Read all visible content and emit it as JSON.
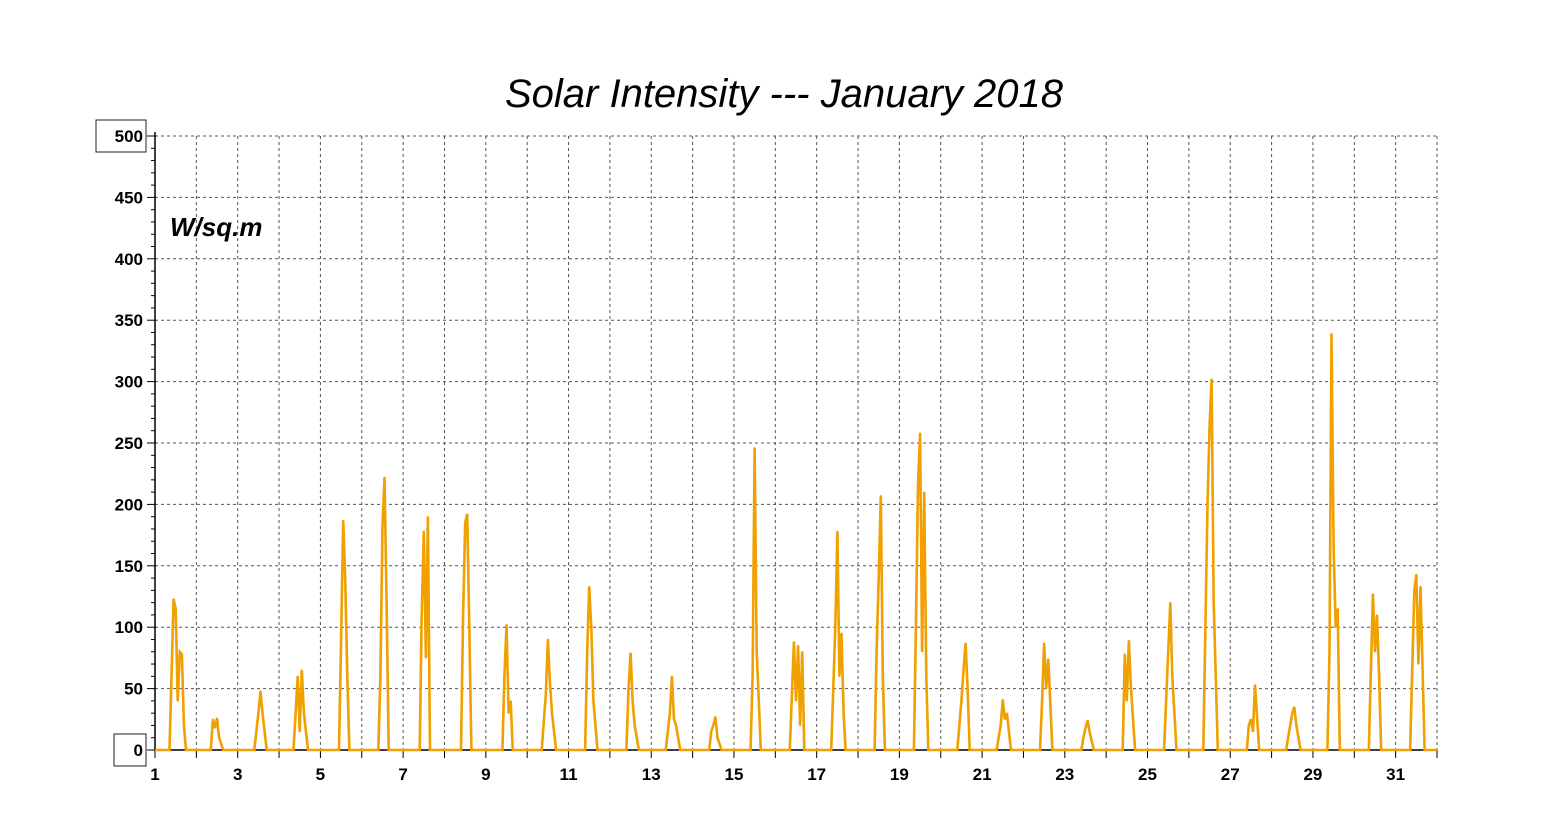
{
  "chart_data": {
    "type": "line",
    "title": "Solar Intensity --- January 2018",
    "ylabel": "W/sq.m",
    "xlabel": "",
    "x_tick_labels": [
      "1",
      "3",
      "5",
      "7",
      "9",
      "11",
      "13",
      "15",
      "17",
      "19",
      "21",
      "23",
      "25",
      "27",
      "29",
      "31"
    ],
    "y_tick_labels": [
      "0",
      "50",
      "100",
      "150",
      "200",
      "250",
      "300",
      "350",
      "400",
      "450",
      "500"
    ],
    "y_boxed_labels": [
      "0",
      "500"
    ],
    "xlim": [
      1,
      32
    ],
    "ylim": [
      0,
      500
    ],
    "grid": true,
    "legend": "none",
    "series": [
      {
        "color": "#f0a000",
        "daily_peaks": [
          {
            "day": 1,
            "x": [
              1.35,
              1.45,
              1.5,
              1.55,
              1.6,
              1.65,
              1.7,
              1.75
            ],
            "y": [
              0,
              123,
              115,
              40,
              80,
              78,
              20,
              0
            ]
          },
          {
            "day": 2,
            "x": [
              2.35,
              2.4,
              2.45,
              2.5,
              2.55,
              2.6,
              2.65
            ],
            "y": [
              0,
              25,
              18,
              26,
              10,
              5,
              0
            ]
          },
          {
            "day": 3,
            "x": [
              3.4,
              3.5,
              3.55,
              3.6,
              3.7
            ],
            "y": [
              0,
              30,
              48,
              30,
              0
            ]
          },
          {
            "day": 4,
            "x": [
              4.35,
              4.45,
              4.5,
              4.55,
              4.6,
              4.7
            ],
            "y": [
              0,
              60,
              15,
              65,
              30,
              0
            ]
          },
          {
            "day": 5,
            "x": [
              5.45,
              5.5,
              5.55,
              5.6,
              5.65,
              5.7
            ],
            "y": [
              0,
              90,
              187,
              140,
              60,
              0
            ]
          },
          {
            "day": 6,
            "x": [
              6.4,
              6.45,
              6.5,
              6.55,
              6.6,
              6.65
            ],
            "y": [
              0,
              60,
              182,
              222,
              120,
              0
            ]
          },
          {
            "day": 7,
            "x": [
              7.4,
              7.45,
              7.5,
              7.55,
              7.6,
              7.65
            ],
            "y": [
              0,
              110,
              178,
              75,
              190,
              0
            ]
          },
          {
            "day": 8,
            "x": [
              8.4,
              8.45,
              8.5,
              8.55,
              8.6,
              8.65
            ],
            "y": [
              0,
              110,
              185,
              192,
              100,
              0
            ]
          },
          {
            "day": 9,
            "x": [
              9.4,
              9.45,
              9.5,
              9.55,
              9.6,
              9.65
            ],
            "y": [
              0,
              60,
              102,
              30,
              40,
              0
            ]
          },
          {
            "day": 10,
            "x": [
              10.35,
              10.45,
              10.5,
              10.55,
              10.6,
              10.7
            ],
            "y": [
              0,
              45,
              90,
              55,
              30,
              0
            ]
          },
          {
            "day": 11,
            "x": [
              11.4,
              11.45,
              11.5,
              11.55,
              11.6,
              11.7
            ],
            "y": [
              0,
              80,
              133,
              100,
              40,
              0
            ]
          },
          {
            "day": 12,
            "x": [
              12.4,
              12.45,
              12.5,
              12.55,
              12.6,
              12.7
            ],
            "y": [
              0,
              50,
              79,
              40,
              20,
              0
            ]
          },
          {
            "day": 13,
            "x": [
              13.35,
              13.45,
              13.5,
              13.55,
              13.6,
              13.7
            ],
            "y": [
              0,
              30,
              60,
              25,
              20,
              0
            ]
          },
          {
            "day": 14,
            "x": [
              14.4,
              14.45,
              14.5,
              14.55,
              14.6,
              14.7
            ],
            "y": [
              0,
              15,
              20,
              27,
              10,
              0
            ]
          },
          {
            "day": 15,
            "x": [
              15.4,
              15.45,
              15.5,
              15.55,
              15.6,
              15.65
            ],
            "y": [
              0,
              60,
              246,
              80,
              40,
              0
            ]
          },
          {
            "day": 16,
            "x": [
              16.35,
              16.45,
              16.5,
              16.55,
              16.6,
              16.65,
              16.7
            ],
            "y": [
              0,
              88,
              40,
              85,
              20,
              80,
              0
            ]
          },
          {
            "day": 17,
            "x": [
              17.35,
              17.45,
              17.5,
              17.55,
              17.6,
              17.65,
              17.7
            ],
            "y": [
              0,
              100,
              178,
              60,
              95,
              30,
              0
            ]
          },
          {
            "day": 18,
            "x": [
              18.4,
              18.45,
              18.5,
              18.55,
              18.6,
              18.65
            ],
            "y": [
              0,
              80,
              140,
              207,
              60,
              0
            ]
          },
          {
            "day": 19,
            "x": [
              19.35,
              19.4,
              19.45,
              19.5,
              19.55,
              19.6,
              19.65,
              19.7
            ],
            "y": [
              0,
              100,
              215,
              258,
              80,
              210,
              60,
              0
            ]
          },
          {
            "day": 20,
            "x": [
              20.4,
              20.5,
              20.55,
              20.6,
              20.65,
              20.7
            ],
            "y": [
              0,
              40,
              65,
              87,
              50,
              0
            ]
          },
          {
            "day": 21,
            "x": [
              21.35,
              21.45,
              21.5,
              21.55,
              21.6,
              21.7
            ],
            "y": [
              0,
              20,
              41,
              25,
              30,
              0
            ]
          },
          {
            "day": 22,
            "x": [
              22.4,
              22.45,
              22.5,
              22.55,
              22.6,
              22.7
            ],
            "y": [
              0,
              40,
              87,
              50,
              74,
              0
            ]
          },
          {
            "day": 23,
            "x": [
              23.4,
              23.45,
              23.5,
              23.55,
              23.6,
              23.7
            ],
            "y": [
              0,
              10,
              18,
              24,
              15,
              0
            ]
          },
          {
            "day": 24,
            "x": [
              24.4,
              24.45,
              24.5,
              24.55,
              24.6,
              24.7
            ],
            "y": [
              0,
              78,
              40,
              89,
              50,
              0
            ]
          },
          {
            "day": 25,
            "x": [
              25.4,
              25.45,
              25.5,
              25.55,
              25.6,
              25.7
            ],
            "y": [
              0,
              40,
              80,
              120,
              60,
              0
            ]
          },
          {
            "day": 26,
            "x": [
              26.35,
              26.45,
              26.5,
              26.55,
              26.6,
              26.7
            ],
            "y": [
              0,
              200,
              262,
              302,
              120,
              0
            ]
          },
          {
            "day": 27,
            "x": [
              27.4,
              27.45,
              27.5,
              27.55,
              27.6,
              27.7
            ],
            "y": [
              0,
              20,
              25,
              15,
              53,
              0
            ]
          },
          {
            "day": 28,
            "x": [
              28.35,
              28.45,
              28.5,
              28.55,
              28.6,
              28.7
            ],
            "y": [
              0,
              20,
              30,
              35,
              20,
              0
            ]
          },
          {
            "day": 29,
            "x": [
              29.35,
              29.4,
              29.45,
              29.5,
              29.55,
              29.6,
              29.65
            ],
            "y": [
              0,
              80,
              339,
              165,
              100,
              115,
              0
            ]
          },
          {
            "day": 30,
            "x": [
              30.35,
              30.45,
              30.5,
              30.55,
              30.6,
              30.65
            ],
            "y": [
              0,
              127,
              80,
              110,
              60,
              0
            ]
          },
          {
            "day": 31,
            "x": [
              31.35,
              31.45,
              31.5,
              31.55,
              31.6,
              31.7
            ],
            "y": [
              0,
              130,
              143,
              70,
              133,
              0
            ]
          }
        ]
      }
    ]
  }
}
